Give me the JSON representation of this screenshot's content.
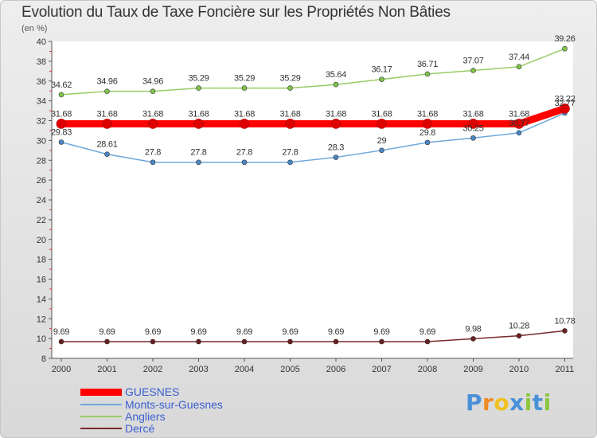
{
  "title": "Evolution du Taux de Taxe Foncière sur les Propriétés Non Bâties",
  "unit": "(en %)",
  "logo": {
    "text": [
      "P",
      "r",
      "o",
      "x",
      "i",
      "t",
      "i"
    ],
    "colors": [
      "#4a90d9",
      "#f08a24",
      "#f0c020",
      "#4a90d9",
      "#8cc63f",
      "#4a90d9",
      "#8cc63f"
    ]
  },
  "chart_data": {
    "type": "line",
    "title": "Evolution du Taux de Taxe Foncière sur les Propriétés Non Bâties",
    "ylabel": "(en %)",
    "xlabel": "",
    "categories": [
      "2000",
      "2001",
      "2002",
      "2003",
      "2004",
      "2005",
      "2006",
      "2007",
      "2008",
      "2009",
      "2010",
      "2011"
    ],
    "ylim": [
      8,
      40
    ],
    "yticks": [
      "8",
      "10",
      "12",
      "14",
      "16",
      "18",
      "20",
      "22",
      "24",
      "26",
      "28",
      "30",
      "32",
      "34",
      "36",
      "38",
      "40"
    ],
    "grid": false,
    "legend_position": "bottom-left",
    "series": [
      {
        "name": "GUESNES",
        "color": "#ff0000",
        "values": [
          31.68,
          31.68,
          31.68,
          31.68,
          31.68,
          31.68,
          31.68,
          31.68,
          31.68,
          31.68,
          31.68,
          33.22
        ],
        "labels": [
          "31.68",
          "31.68",
          "31.68",
          "31.68",
          "31.68",
          "31.68",
          "31.68",
          "31.68",
          "31.68",
          "31.68",
          "31.68",
          "33.22"
        ]
      },
      {
        "name": "Monts-sur-Guesnes",
        "color": "#6fa8dc",
        "values": [
          29.83,
          28.61,
          27.8,
          27.8,
          27.8,
          27.8,
          28.3,
          29,
          29.8,
          30.25,
          30.77,
          32.77
        ],
        "labels": [
          "29.83",
          "28.61",
          "27.8",
          "27.8",
          "27.8",
          "27.8",
          "28.3",
          "29",
          "29.8",
          "30.25",
          "30.77",
          "32.77"
        ]
      },
      {
        "name": "Angliers",
        "color": "#99cc66",
        "values": [
          34.62,
          34.96,
          34.96,
          35.29,
          35.29,
          35.29,
          35.64,
          36.17,
          36.71,
          37.07,
          37.44,
          39.26
        ],
        "labels": [
          "34.62",
          "34.96",
          "34.96",
          "35.29",
          "35.29",
          "35.29",
          "35.64",
          "36.17",
          "36.71",
          "37.07",
          "37.44",
          "39.26"
        ]
      },
      {
        "name": "Dercé",
        "color": "#7b2a2a",
        "values": [
          9.69,
          9.69,
          9.69,
          9.69,
          9.69,
          9.69,
          9.69,
          9.69,
          9.69,
          9.98,
          10.28,
          10.78
        ],
        "labels": [
          "9.69",
          "9.69",
          "9.69",
          "9.69",
          "9.69",
          "9.69",
          "9.69",
          "9.69",
          "9.69",
          "9.98",
          "10.28",
          "10.78"
        ]
      }
    ]
  }
}
